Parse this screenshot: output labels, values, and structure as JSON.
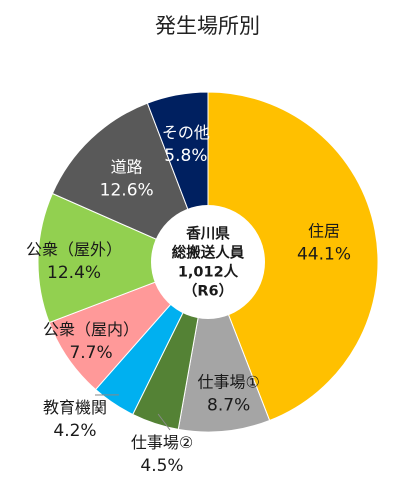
{
  "chart_data": {
    "type": "pie",
    "variant": "donut",
    "title": "発生場所別",
    "center_label": [
      "香川県",
      "総搬送人員",
      "1,012人",
      "（R6）"
    ],
    "slices": [
      {
        "label": "住居",
        "value": 44.1,
        "value_label": "44.1%",
        "color": "#FFC000",
        "text_color": "#1a1a1a"
      },
      {
        "label": "仕事場①",
        "value": 8.7,
        "value_label": "8.7%",
        "color": "#A5A5A5",
        "text_color": "#1a1a1a"
      },
      {
        "label": "仕事場②",
        "value": 4.5,
        "value_label": "4.5%",
        "color": "#548235",
        "text_color": "#1a1a1a"
      },
      {
        "label": "教育機関",
        "value": 4.2,
        "value_label": "4.2%",
        "color": "#00B0F0",
        "text_color": "#1a1a1a"
      },
      {
        "label": "公衆（屋内）",
        "value": 7.7,
        "value_label": "7.7%",
        "color": "#FF9999",
        "text_color": "#1a1a1a"
      },
      {
        "label": "公衆（屋外）",
        "value": 12.4,
        "value_label": "12.4%",
        "color": "#92D050",
        "text_color": "#1a1a1a"
      },
      {
        "label": "道路",
        "value": 12.6,
        "value_label": "12.6%",
        "color": "#595959",
        "text_color": "#ffffff"
      },
      {
        "label": "その他",
        "value": 5.8,
        "value_label": "5.8%",
        "color": "#002060",
        "text_color": "#ffffff"
      }
    ],
    "start_angle_deg": 0,
    "direction": "clockwise"
  }
}
